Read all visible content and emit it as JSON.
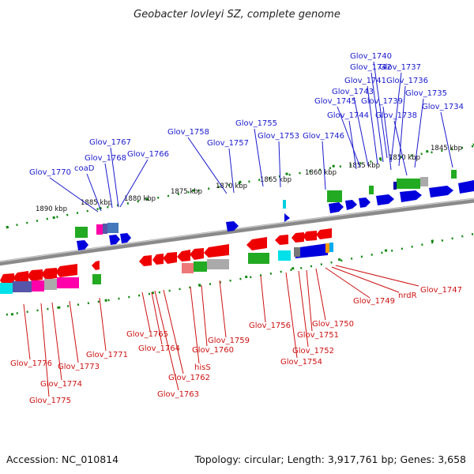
{
  "title": "Geobacter lovleyi SZ, complete genome",
  "footer": {
    "accession": "Accession: NC_010814",
    "summary": "Topology: circular; Length: 3,917,761 bp; Genes: 3,658"
  },
  "colors": {
    "forward_gene": "#0000dd",
    "reverse_gene": "#ee0000",
    "top_label": "#1a1acc",
    "bottom_label": "#cc1111",
    "backbone": "#888888",
    "tick": "#118811"
  },
  "ticks": [
    {
      "label": "1845 kbp"
    },
    {
      "label": "1850 kbp"
    },
    {
      "label": "1855 kbp"
    },
    {
      "label": "1860 kbp"
    },
    {
      "label": "1865 kbp"
    },
    {
      "label": "1870 kbp"
    },
    {
      "label": "1875 kbp"
    },
    {
      "label": "1880 kbp"
    },
    {
      "label": "1885 kbp"
    },
    {
      "label": "1890 kbp"
    }
  ],
  "top_labels": [
    {
      "text": "Glov_1740"
    },
    {
      "text": "Glov_1742"
    },
    {
      "text": "Glov_1737"
    },
    {
      "text": "Glov_1741"
    },
    {
      "text": "Glov_1736"
    },
    {
      "text": "Glov_1743"
    },
    {
      "text": "Glov_1735"
    },
    {
      "text": "Glov_1745"
    },
    {
      "text": "Glov_1739"
    },
    {
      "text": "Glov_1734"
    },
    {
      "text": "Glov_1744"
    },
    {
      "text": "Glov_1738"
    },
    {
      "text": "Glov_1755"
    },
    {
      "text": "Glov_1758"
    },
    {
      "text": "Glov_1753"
    },
    {
      "text": "Glov_1746"
    },
    {
      "text": "Glov_1757"
    },
    {
      "text": "Glov_1767"
    },
    {
      "text": "Glov_1766"
    },
    {
      "text": "Glov_1768"
    },
    {
      "text": "coaD"
    },
    {
      "text": "Glov_1770"
    }
  ],
  "bottom_labels": [
    {
      "text": "Glov_1747"
    },
    {
      "text": "nrdR"
    },
    {
      "text": "Glov_1749"
    },
    {
      "text": "Glov_1750"
    },
    {
      "text": "Glov_1751"
    },
    {
      "text": "Glov_1756"
    },
    {
      "text": "Glov_1752"
    },
    {
      "text": "Glov_1754"
    },
    {
      "text": "Glov_1759"
    },
    {
      "text": "Glov_1765"
    },
    {
      "text": "Glov_1764"
    },
    {
      "text": "Glov_1760"
    },
    {
      "text": "hisS"
    },
    {
      "text": "Glov_1762"
    },
    {
      "text": "Glov_1763"
    },
    {
      "text": "Glov_1771"
    },
    {
      "text": "Glov_1776"
    },
    {
      "text": "Glov_1773"
    },
    {
      "text": "Glov_1774"
    },
    {
      "text": "Glov_1775"
    }
  ]
}
